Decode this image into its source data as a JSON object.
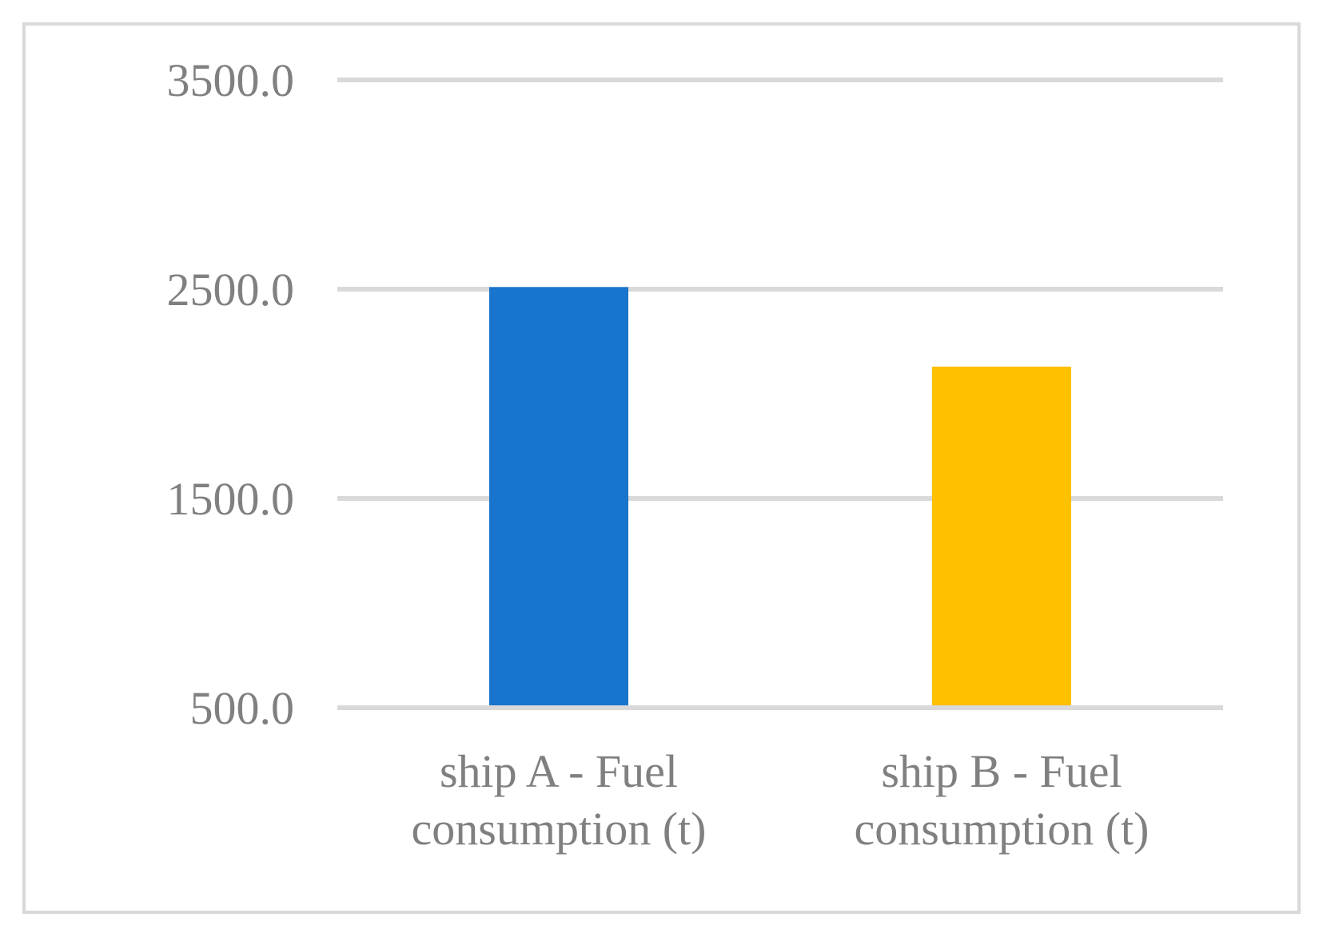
{
  "chart_data": {
    "type": "bar",
    "categories": [
      "ship A - Fuel consumption (t)",
      "ship B - Fuel consumption (t)"
    ],
    "category_lines": [
      [
        "ship A - Fuel",
        "consumption (t)"
      ],
      [
        "ship B - Fuel",
        "consumption (t)"
      ]
    ],
    "values": [
      2510,
      2130
    ],
    "bar_colors": [
      "#1874CD",
      "#FFC000"
    ],
    "ylim": [
      500,
      3500
    ],
    "yticks": [
      500,
      1500,
      2500,
      3500
    ],
    "ytick_labels": [
      "500.0",
      "1500.0",
      "2500.0",
      "3500.0"
    ],
    "grid": true,
    "legend": "none",
    "colors": {
      "grid": "#D9D9D9",
      "frame": "#D9D9D9",
      "text": "#808080"
    }
  }
}
